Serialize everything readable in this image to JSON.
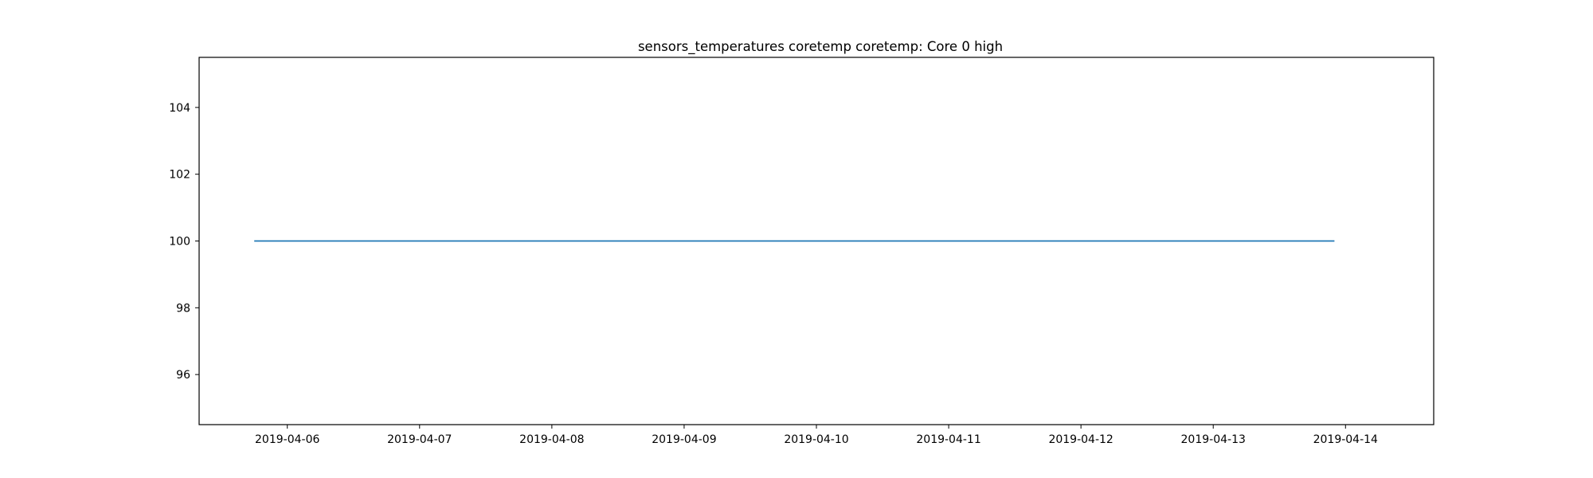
{
  "chart_data": {
    "type": "line",
    "title": "sensors_temperatures coretemp coretemp: Core 0 high",
    "xlabel": "",
    "ylabel": "",
    "x_type": "date",
    "xlim": [
      "2019-04-05T08:00",
      "2019-04-14T16:00"
    ],
    "ylim": [
      94.5,
      105.5
    ],
    "x_ticks": [
      "2019-04-06",
      "2019-04-07",
      "2019-04-08",
      "2019-04-09",
      "2019-04-10",
      "2019-04-11",
      "2019-04-12",
      "2019-04-13",
      "2019-04-14"
    ],
    "y_ticks": [
      96,
      98,
      100,
      102,
      104
    ],
    "grid": false,
    "series": [
      {
        "color": "#1f77b4",
        "points": [
          {
            "x": "2019-04-05T18:00",
            "y": 100
          },
          {
            "x": "2019-04-13T22:00",
            "y": 100
          }
        ]
      }
    ]
  }
}
